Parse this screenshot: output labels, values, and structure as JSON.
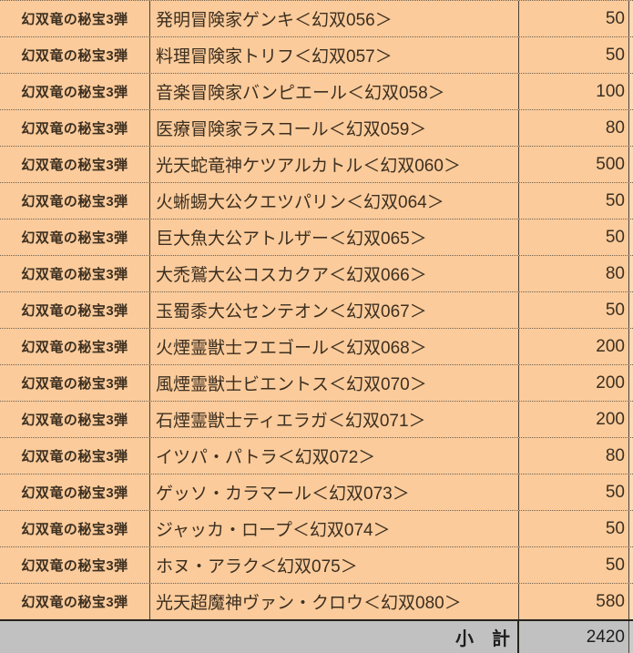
{
  "table": {
    "rows": [
      {
        "set": "幻双竜の秘宝3弾",
        "name": "発明冒険家ゲンキ＜幻双056＞",
        "value": "50"
      },
      {
        "set": "幻双竜の秘宝3弾",
        "name": "料理冒険家トリフ＜幻双057＞",
        "value": "50"
      },
      {
        "set": "幻双竜の秘宝3弾",
        "name": "音楽冒険家バンピエール＜幻双058＞",
        "value": "100"
      },
      {
        "set": "幻双竜の秘宝3弾",
        "name": "医療冒険家ラスコール＜幻双059＞",
        "value": "80"
      },
      {
        "set": "幻双竜の秘宝3弾",
        "name": "光天蛇竜神ケツアルカトル＜幻双060＞",
        "value": "500"
      },
      {
        "set": "幻双竜の秘宝3弾",
        "name": "火蜥蜴大公クエツパリン＜幻双064＞",
        "value": "50"
      },
      {
        "set": "幻双竜の秘宝3弾",
        "name": "巨大魚大公アトルザー＜幻双065＞",
        "value": "50"
      },
      {
        "set": "幻双竜の秘宝3弾",
        "name": "大禿鷲大公コスカクア＜幻双066＞",
        "value": "80"
      },
      {
        "set": "幻双竜の秘宝3弾",
        "name": "玉蜀黍大公センテオン＜幻双067＞",
        "value": "50"
      },
      {
        "set": "幻双竜の秘宝3弾",
        "name": "火煙霊獣士フエゴール＜幻双068＞",
        "value": "200"
      },
      {
        "set": "幻双竜の秘宝3弾",
        "name": "風煙霊獣士ビエントス＜幻双070＞",
        "value": "200"
      },
      {
        "set": "幻双竜の秘宝3弾",
        "name": "石煙霊獣士ティエラガ＜幻双071＞",
        "value": "200"
      },
      {
        "set": "幻双竜の秘宝3弾",
        "name": "イツパ・パトラ＜幻双072＞",
        "value": "80"
      },
      {
        "set": "幻双竜の秘宝3弾",
        "name": "ゲッソ・カラマール＜幻双073＞",
        "value": "50"
      },
      {
        "set": "幻双竜の秘宝3弾",
        "name": "ジャッカ・ロープ＜幻双074＞",
        "value": "50"
      },
      {
        "set": "幻双竜の秘宝3弾",
        "name": "ホヌ・アラク＜幻双075＞",
        "value": "50"
      },
      {
        "set": "幻双竜の秘宝3弾",
        "name": "光天超魔神ヴァン・クロウ＜幻双080＞",
        "value": "580"
      }
    ],
    "footer": {
      "label": "小　計",
      "total": "2420"
    }
  },
  "colors": {
    "row_bg": "#fbcb9b",
    "row_bg_edge": "#fdd9b8",
    "footer_bg": "#c1c1c1",
    "footer_bg_edge": "#cbcbcb",
    "grid_line": "#4a4038",
    "dot_line": "#6e6152",
    "heavy_line": "#26221d",
    "text_color": "#3c2f20",
    "footer_text": "#1d1d1d"
  }
}
